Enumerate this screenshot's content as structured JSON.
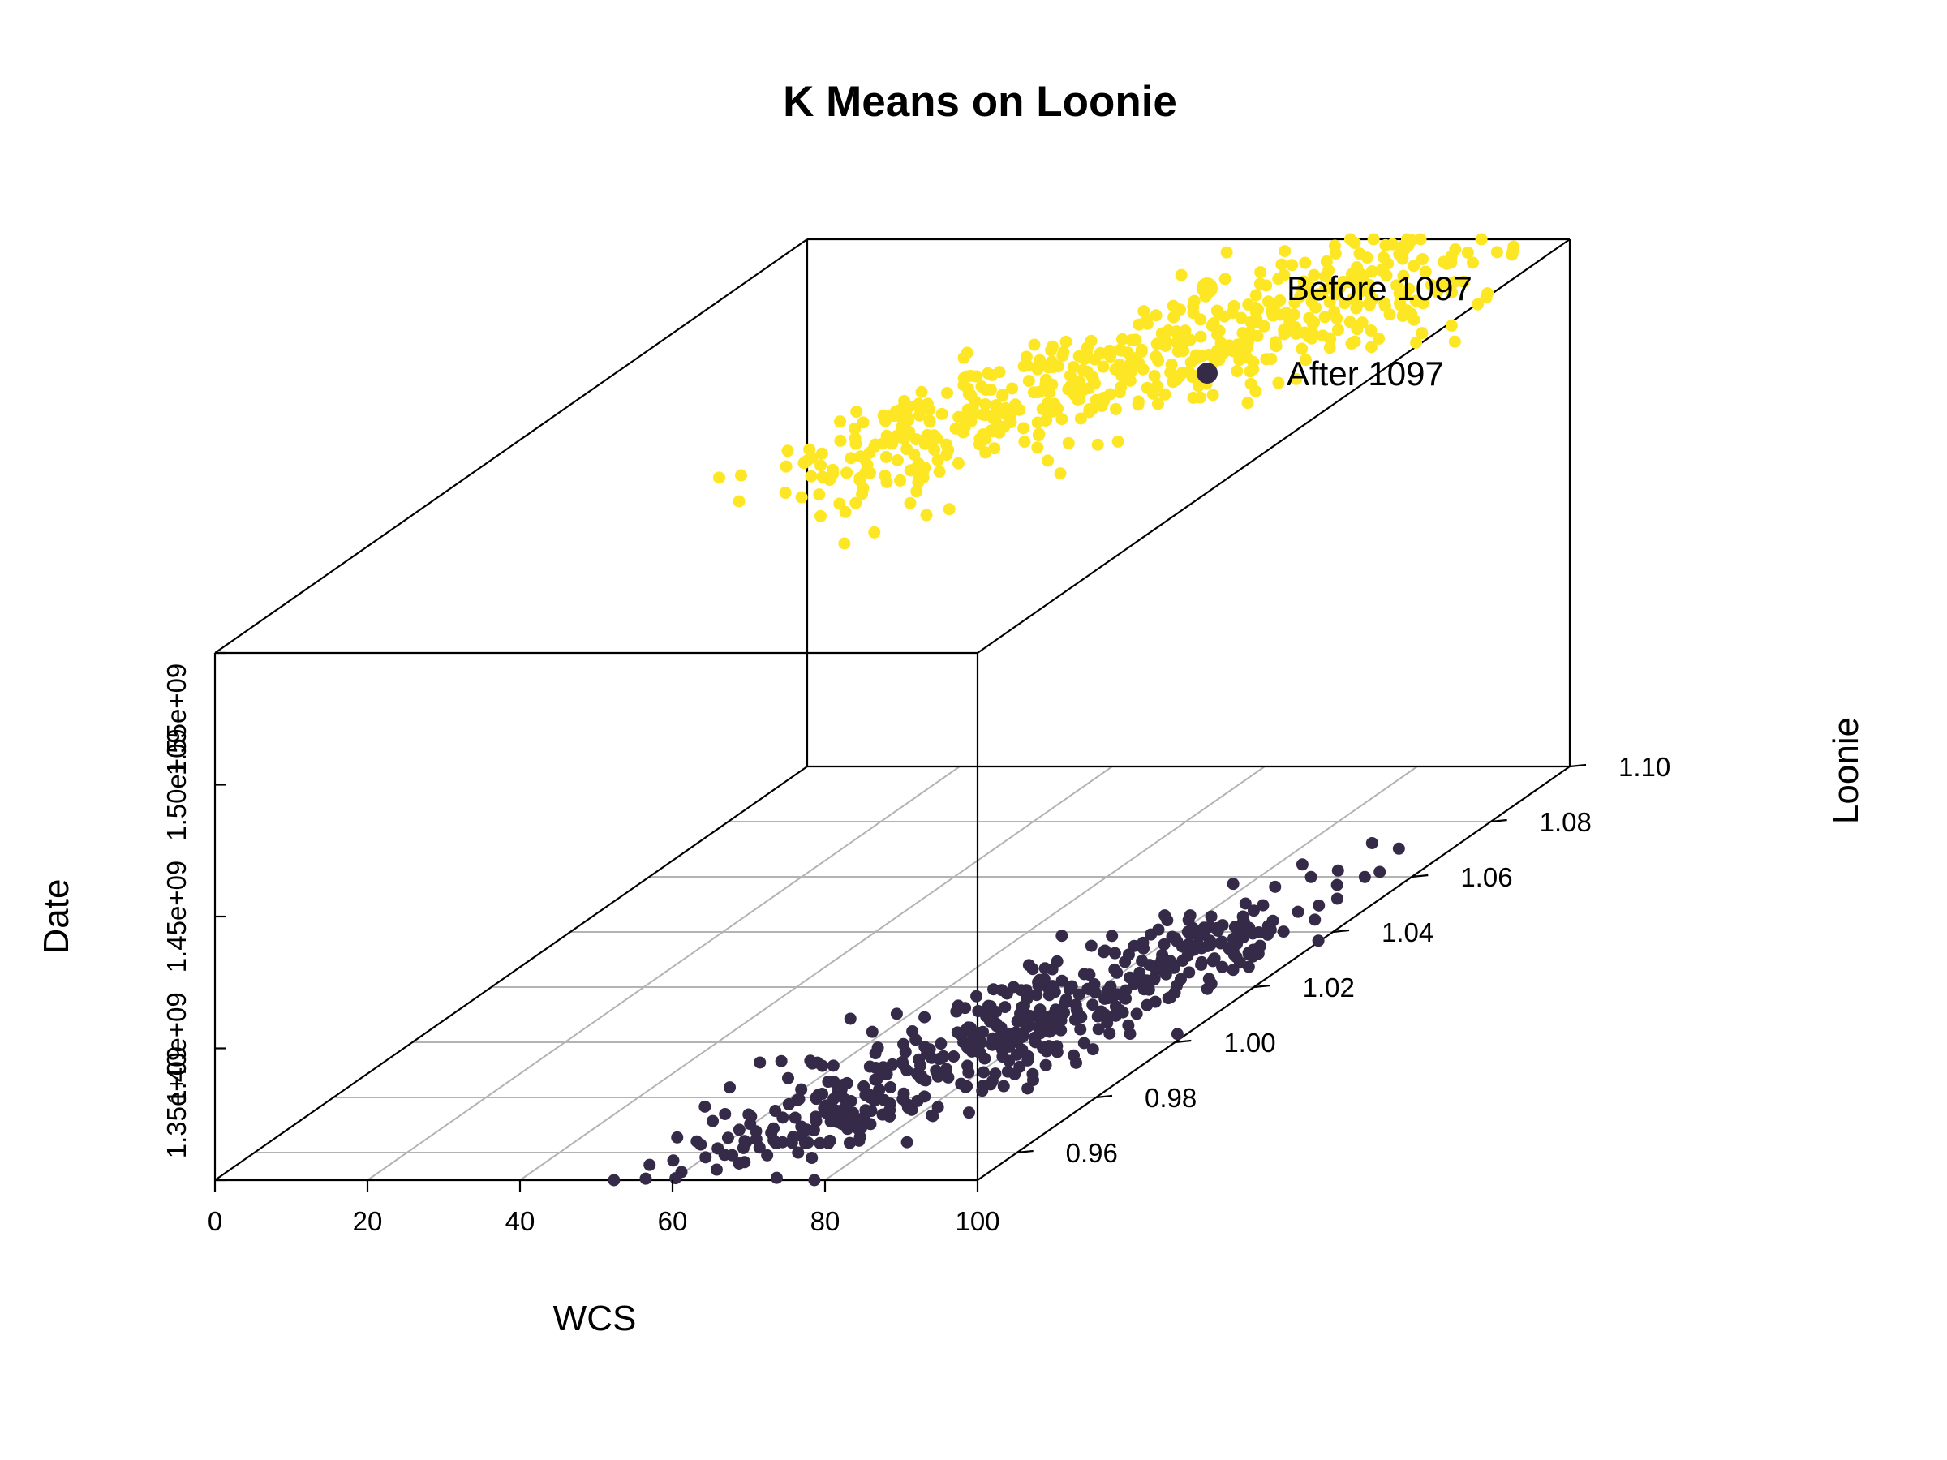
{
  "chart_data": {
    "type": "scatter",
    "title": "K Means on Loonie",
    "xlabel": "WCS",
    "ylabel": "Loonie",
    "zlabel": "Date",
    "x_ticks": [
      "0",
      "20",
      "40",
      "60",
      "80",
      "100"
    ],
    "y_ticks": [
      "0.96",
      "0.98",
      "1.00",
      "1.02",
      "1.04",
      "1.06",
      "1.08",
      "1.10"
    ],
    "z_ticks": [
      "1.35e+09",
      "1.40e+09",
      "1.45e+09",
      "1.50e+09",
      "1.55e+09"
    ],
    "xlim": [
      0,
      100
    ],
    "ylim": [
      0.95,
      1.1
    ],
    "zlim": [
      1350000000.0,
      1550000000.0
    ],
    "grid": "xy-plane",
    "legend_position": "top-right",
    "series": [
      {
        "name": "Before 1097",
        "color": "#fde725",
        "trend": [
          {
            "x": 25,
            "y": 1.06,
            "z": 1510000000.0
          },
          {
            "x": 90,
            "y": 1.09,
            "z": 1550000000.0
          }
        ]
      },
      {
        "name": "After 1097",
        "color": "#352a47",
        "trend": [
          {
            "x": 65,
            "y": 0.96,
            "z": 1352000000.0
          },
          {
            "x": 95,
            "y": 1.03,
            "z": 1362000000.0
          }
        ]
      }
    ]
  }
}
